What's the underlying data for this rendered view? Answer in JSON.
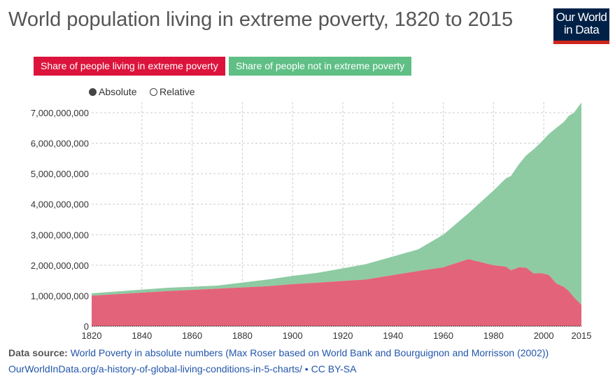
{
  "header": {
    "title": "World population living in extreme poverty, 1820 to 2015",
    "logo": "Our World in Data"
  },
  "legend": [
    "Share of people living in extreme poverty",
    "Share of people not in extreme poverty"
  ],
  "toggle": {
    "absolute": "Absolute",
    "relative": "Relative",
    "selected": "Absolute"
  },
  "footer": {
    "source_label": "Data source:",
    "source_text": "World Poverty in absolute numbers (Max Roser based on World Bank and Bourguignon and Morrisson (2002))",
    "link": "OurWorldInData.org/a-history-of-global-living-conditions-in-5-charts/ • CC BY-SA"
  },
  "colors": {
    "poverty": "#e3637a",
    "not_poverty": "#8ecba3"
  },
  "chart_data": {
    "type": "area",
    "stacked": true,
    "title": "World population living in extreme poverty, 1820 to 2015",
    "xlim": [
      1820,
      2015
    ],
    "ylim": [
      0,
      7000000000
    ],
    "x_ticks": [
      1820,
      1840,
      1860,
      1880,
      1900,
      1920,
      1940,
      1960,
      1980,
      2000,
      2015
    ],
    "y_ticks": [
      "0",
      "1,000,000,000",
      "2,000,000,000",
      "3,000,000,000",
      "4,000,000,000",
      "5,000,000,000",
      "6,000,000,000",
      "7,000,000,000"
    ],
    "x": [
      1820,
      1850,
      1870,
      1890,
      1900,
      1910,
      1929,
      1950,
      1960,
      1970,
      1980,
      1985,
      1987,
      1990,
      1993,
      1996,
      1999,
      2002,
      2005,
      2008,
      2010,
      2012,
      2015
    ],
    "series": [
      {
        "name": "Share of people living in extreme poverty",
        "values": [
          1.0,
          1.15,
          1.23,
          1.31,
          1.38,
          1.43,
          1.53,
          1.81,
          1.93,
          2.2,
          2.0,
          1.95,
          1.83,
          1.93,
          1.92,
          1.73,
          1.74,
          1.68,
          1.4,
          1.29,
          1.15,
          0.95,
          0.7
        ],
        "unit": "billion"
      },
      {
        "name": "Share of people not in extreme poverty",
        "values": [
          0.08,
          0.11,
          0.1,
          0.22,
          0.27,
          0.32,
          0.5,
          0.71,
          1.07,
          1.5,
          2.45,
          2.9,
          3.1,
          3.37,
          3.68,
          4.07,
          4.3,
          4.62,
          5.1,
          5.41,
          5.75,
          6.05,
          6.63
        ],
        "unit": "billion"
      }
    ],
    "grid": true,
    "legend_placement": "top-left"
  }
}
